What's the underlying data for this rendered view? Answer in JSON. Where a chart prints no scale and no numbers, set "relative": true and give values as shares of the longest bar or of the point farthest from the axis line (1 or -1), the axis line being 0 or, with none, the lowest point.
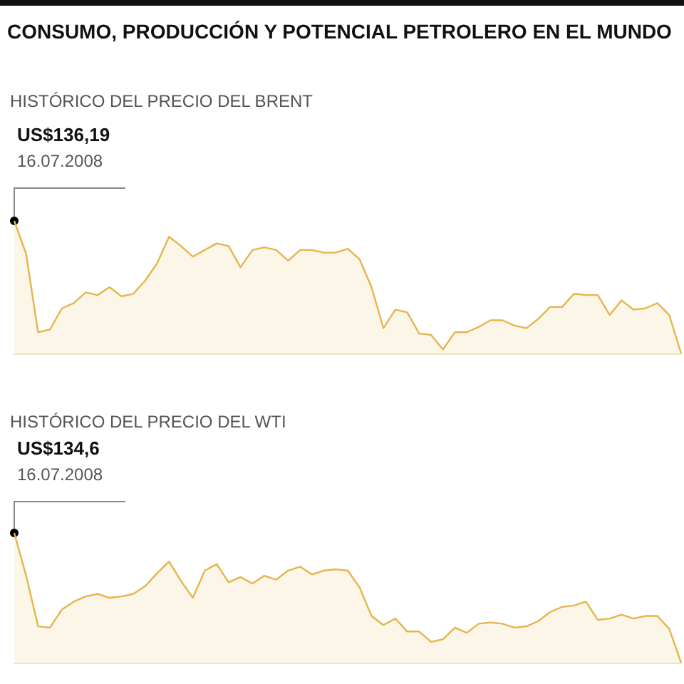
{
  "chart_data": [
    {
      "type": "area",
      "title": "CONSUMO, PRODUCCIÓN Y POTENCIAL PETROLERO EN EL MUNDO",
      "subtitle": "HISTÓRICO DEL PRECIO DEL BRENT",
      "annotations": [
        "US$136,19",
        "16.07.2008"
      ],
      "relative": true,
      "color": "#e6b54a",
      "categories": [
        null,
        null,
        null,
        null,
        null,
        null,
        null,
        null,
        null,
        null,
        null,
        null,
        null,
        null,
        null,
        null,
        null,
        null,
        null,
        null,
        null,
        null,
        null,
        null,
        null,
        null,
        null,
        null,
        null,
        null,
        null,
        null,
        null,
        null,
        null,
        null,
        null,
        null,
        null,
        null,
        null,
        null,
        null,
        null,
        null,
        null,
        null,
        null,
        null,
        null,
        null,
        null,
        null,
        null,
        null,
        null,
        null
      ],
      "values": [
        1,
        0.75,
        0.16,
        0.18,
        0.34,
        0.38,
        0.46,
        0.44,
        0.5,
        0.43,
        0.45,
        0.55,
        0.68,
        0.88,
        0.81,
        0.73,
        0.78,
        0.83,
        0.81,
        0.65,
        0.78,
        0.8,
        0.78,
        0.7,
        0.78,
        0.78,
        0.76,
        0.76,
        0.79,
        0.71,
        0.5,
        0.19,
        0.33,
        0.31,
        0.15,
        0.14,
        0.03,
        0.16,
        0.16,
        0.2,
        0.25,
        0.25,
        0.21,
        0.19,
        0.26,
        0.35,
        0.35,
        0.45,
        0.44,
        0.44,
        0.29,
        0.4,
        0.33,
        0.34,
        0.38,
        0.29,
        0
      ]
    },
    {
      "type": "area",
      "title": "HISTÓRICO DEL PRECIO DEL WTI",
      "annotations": [
        "US$134,6",
        "16.07.2008"
      ],
      "relative": true,
      "color": "#e6b54a",
      "categories": [
        null,
        null,
        null,
        null,
        null,
        null,
        null,
        null,
        null,
        null,
        null,
        null,
        null,
        null,
        null,
        null,
        null,
        null,
        null,
        null,
        null,
        null,
        null,
        null,
        null,
        null,
        null,
        null,
        null,
        null,
        null,
        null,
        null,
        null,
        null,
        null,
        null,
        null,
        null,
        null,
        null,
        null,
        null,
        null,
        null,
        null,
        null,
        null,
        null,
        null,
        null,
        null,
        null,
        null,
        null,
        null,
        null
      ],
      "values": [
        1,
        0.67,
        0.28,
        0.27,
        0.41,
        0.47,
        0.51,
        0.53,
        0.5,
        0.51,
        0.53,
        0.59,
        0.69,
        0.78,
        0.63,
        0.5,
        0.71,
        0.76,
        0.62,
        0.66,
        0.61,
        0.67,
        0.64,
        0.71,
        0.74,
        0.68,
        0.71,
        0.72,
        0.71,
        0.58,
        0.36,
        0.29,
        0.34,
        0.24,
        0.24,
        0.16,
        0.18,
        0.27,
        0.23,
        0.3,
        0.31,
        0.3,
        0.27,
        0.28,
        0.32,
        0.39,
        0.43,
        0.44,
        0.47,
        0.33,
        0.34,
        0.37,
        0.34,
        0.36,
        0.36,
        0.26,
        0
      ]
    }
  ]
}
